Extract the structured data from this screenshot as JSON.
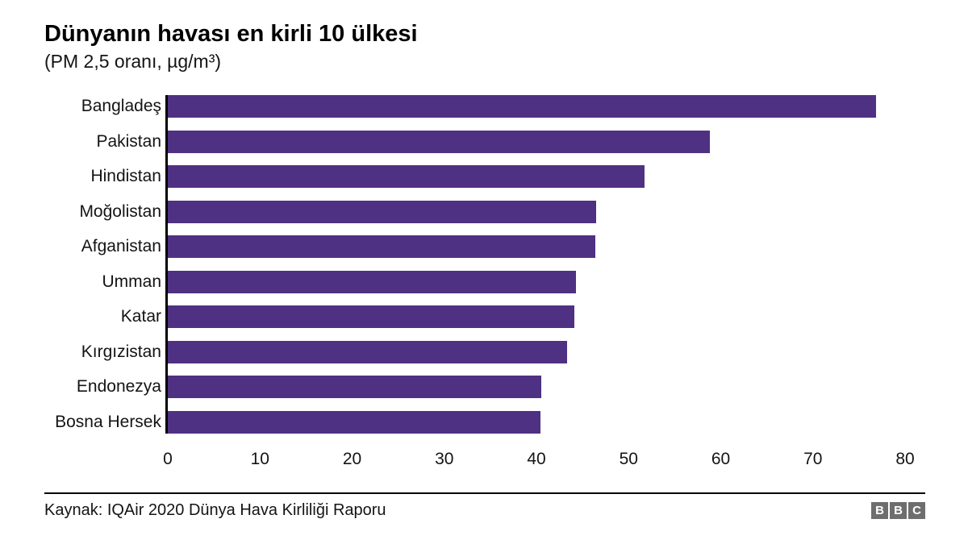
{
  "header": {
    "title": "Dünyanın havası en kirli 10 ülkesi",
    "subtitle": "(PM 2,5 oranı, µg/m³)"
  },
  "chart_data": {
    "type": "bar",
    "orientation": "horizontal",
    "title": "Dünyanın havası en kirli 10 ülkesi",
    "subtitle": "(PM 2,5 oranı, µg/m³)",
    "categories": [
      "Bangladeş",
      "Pakistan",
      "Hindistan",
      "Moğolistan",
      "Afganistan",
      "Umman",
      "Katar",
      "Kırgızistan",
      "Endonezya",
      "Bosna Hersek"
    ],
    "values": [
      77.1,
      59.0,
      51.9,
      46.6,
      46.5,
      44.4,
      44.3,
      43.5,
      40.7,
      40.6
    ],
    "xlabel": "",
    "ylabel": "",
    "xlim": [
      0,
      80
    ],
    "xticks": [
      0,
      10,
      20,
      30,
      40,
      50,
      60,
      70,
      80
    ],
    "bar_color": "#4f3183",
    "axis_color": "#000000",
    "grid": false,
    "legend": false
  },
  "footer": {
    "source": "Kaynak: IQAir 2020 Dünya Hava Kirliliği Raporu",
    "logo_letters": [
      "B",
      "B",
      "C"
    ]
  }
}
